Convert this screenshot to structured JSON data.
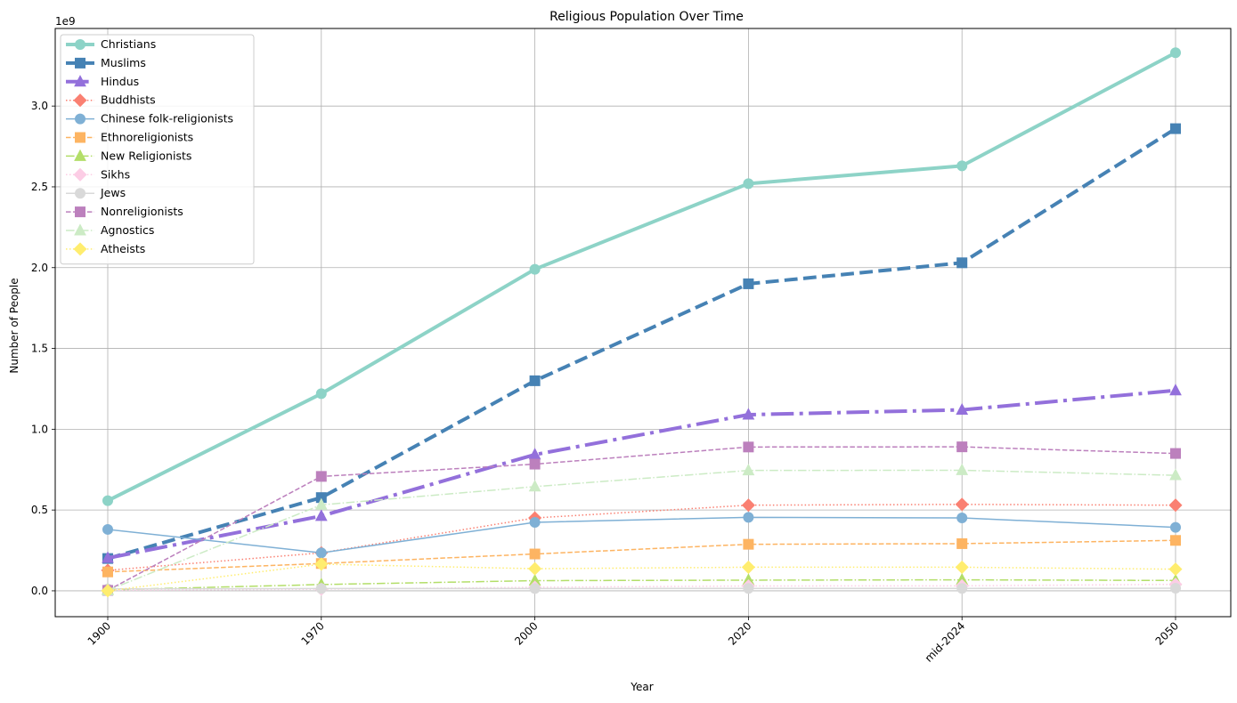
{
  "chart_data": {
    "type": "line",
    "title": "Religious Population Over Time",
    "xlabel": "Year",
    "ylabel": "Number of People",
    "y_offset_text": "1e9",
    "categories": [
      "1900",
      "1970",
      "2000",
      "2020",
      "mid-2024",
      "2050"
    ],
    "ylim": [
      -0.16,
      3.48
    ],
    "yticks": [
      0.0,
      0.5,
      1.0,
      1.5,
      2.0,
      2.5,
      3.0
    ],
    "ytick_labels": [
      "0.0",
      "0.5",
      "1.0",
      "1.5",
      "2.0",
      "2.5",
      "3.0"
    ],
    "grid": true,
    "legend_position": "top-left",
    "series": [
      {
        "name": "Christians",
        "values": [
          0.558,
          1.22,
          1.99,
          2.52,
          2.63,
          3.33
        ],
        "color": "#8dd3c7",
        "dash": "solid",
        "marker": "circle",
        "width": "bold"
      },
      {
        "name": "Muslims",
        "values": [
          0.2,
          0.577,
          1.3,
          1.9,
          2.03,
          2.86
        ],
        "color": "#4682b4",
        "dash": "dashed",
        "marker": "square",
        "width": "bold"
      },
      {
        "name": "Hindus",
        "values": [
          0.203,
          0.463,
          0.843,
          1.09,
          1.12,
          1.24
        ],
        "color": "#9370db",
        "dash": "dashdot",
        "marker": "triangle",
        "width": "bold"
      },
      {
        "name": "Buddhists",
        "values": [
          0.127,
          0.235,
          0.451,
          0.53,
          0.535,
          0.53
        ],
        "color": "#fa8072",
        "dash": "dotted",
        "marker": "diamond",
        "width": "thin"
      },
      {
        "name": "Chinese folk-religionists",
        "values": [
          0.38,
          0.235,
          0.424,
          0.455,
          0.451,
          0.393
        ],
        "color": "#7fb0d5",
        "dash": "solid",
        "marker": "circle",
        "width": "thin"
      },
      {
        "name": "Ethnoreligionists",
        "values": [
          0.117,
          0.169,
          0.228,
          0.288,
          0.292,
          0.312
        ],
        "color": "#fdb462",
        "dash": "dashed",
        "marker": "square",
        "width": "thin"
      },
      {
        "name": "New Religionists",
        "values": [
          0.006,
          0.039,
          0.063,
          0.066,
          0.068,
          0.064
        ],
        "color": "#b3de69",
        "dash": "dashdot",
        "marker": "triangle",
        "width": "thin"
      },
      {
        "name": "Sikhs",
        "values": [
          0.003,
          0.01,
          0.022,
          0.03,
          0.031,
          0.04
        ],
        "color": "#fccde5",
        "dash": "dotted",
        "marker": "diamond",
        "width": "thin"
      },
      {
        "name": "Jews",
        "values": [
          0.012,
          0.014,
          0.014,
          0.015,
          0.015,
          0.016
        ],
        "color": "#d9d9d9",
        "dash": "solid",
        "marker": "circle",
        "width": "thin"
      },
      {
        "name": "Nonreligionists",
        "values": [
          0.003,
          0.708,
          0.784,
          0.89,
          0.891,
          0.85
        ],
        "color": "#bc80bd",
        "dash": "dashed",
        "marker": "square",
        "width": "thin"
      },
      {
        "name": "Agnostics",
        "values": [
          0.003,
          0.532,
          0.645,
          0.745,
          0.746,
          0.715
        ],
        "color": "#ccebc5",
        "dash": "dashdot",
        "marker": "triangle",
        "width": "thin"
      },
      {
        "name": "Atheists",
        "values": [
          0.0002,
          0.165,
          0.137,
          0.146,
          0.146,
          0.134
        ],
        "color": "#ffed6f",
        "dash": "dotted",
        "marker": "diamond",
        "width": "thin"
      }
    ]
  }
}
